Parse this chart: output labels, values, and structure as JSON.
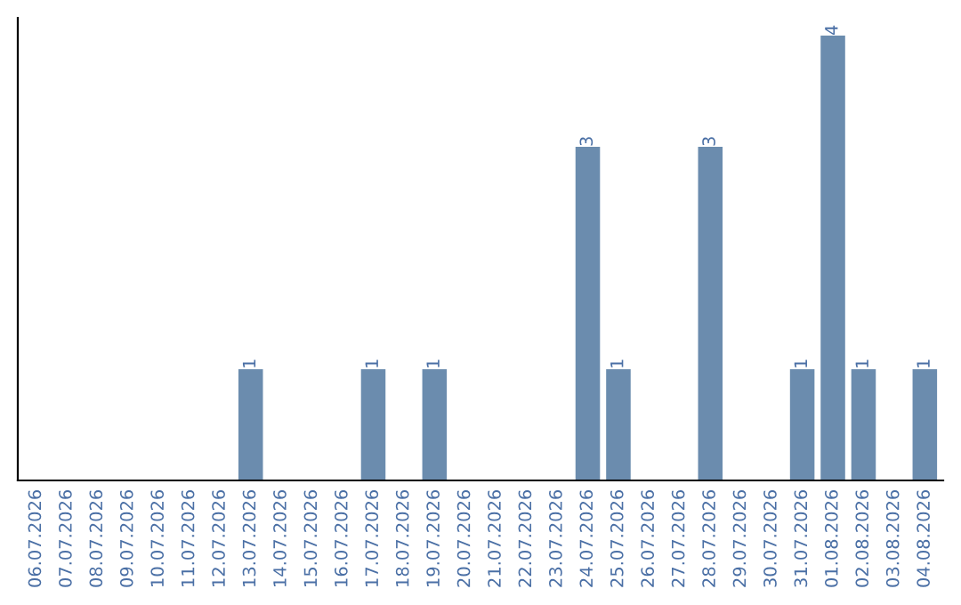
{
  "chart_data": {
    "type": "bar",
    "categories": [
      "06.07.2026",
      "07.07.2026",
      "08.07.2026",
      "09.07.2026",
      "10.07.2026",
      "11.07.2026",
      "12.07.2026",
      "13.07.2026",
      "14.07.2026",
      "15.07.2026",
      "16.07.2026",
      "17.07.2026",
      "18.07.2026",
      "19.07.2026",
      "20.07.2026",
      "21.07.2026",
      "22.07.2026",
      "23.07.2026",
      "24.07.2026",
      "25.07.2026",
      "26.07.2026",
      "27.07.2026",
      "28.07.2026",
      "29.07.2026",
      "30.07.2026",
      "31.07.2026",
      "01.08.2026",
      "02.08.2026",
      "03.08.2026",
      "04.08.2026"
    ],
    "values": [
      0,
      0,
      0,
      0,
      0,
      0,
      0,
      1,
      0,
      0,
      0,
      1,
      0,
      1,
      0,
      0,
      0,
      0,
      3,
      1,
      0,
      0,
      3,
      0,
      0,
      1,
      4,
      1,
      0,
      1
    ],
    "value_labels": [
      null,
      null,
      null,
      null,
      null,
      null,
      null,
      "1",
      null,
      null,
      null,
      "1",
      null,
      "1",
      null,
      null,
      null,
      null,
      "3",
      "1",
      null,
      null,
      "3",
      null,
      null,
      "1",
      "4",
      "1",
      null,
      "1"
    ],
    "color": "#6b8cae",
    "ylim": [
      0,
      4.16
    ],
    "tick_labels": "x",
    "grid": false,
    "legend": false
  }
}
